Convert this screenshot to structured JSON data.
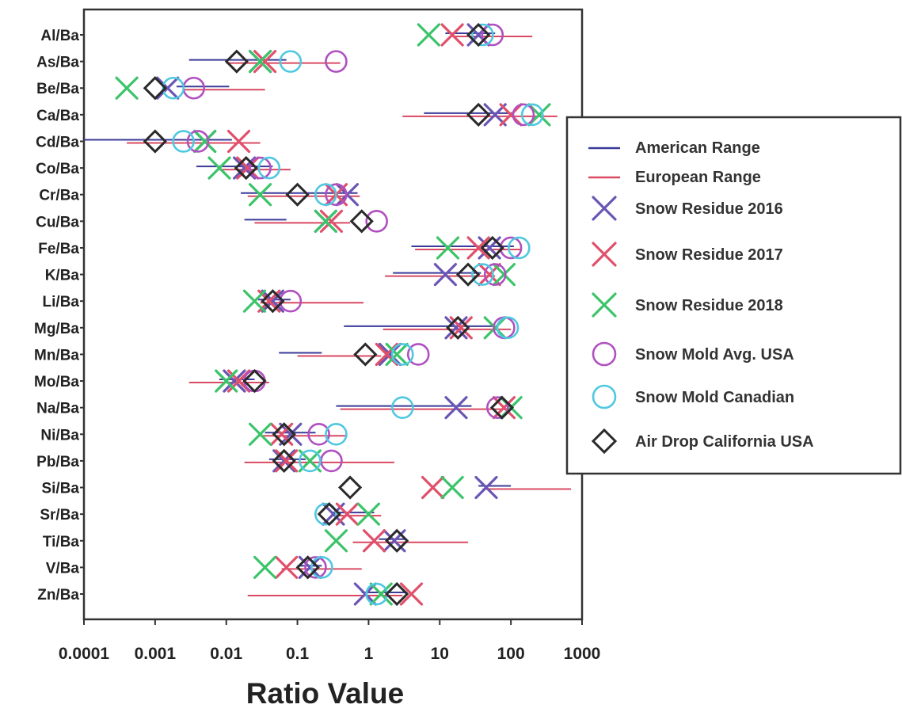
{
  "chart_data": {
    "type": "scatter",
    "xlabel": "Ratio Value",
    "xscale": "log",
    "xlim": [
      0.0001,
      1000
    ],
    "xticks": [
      "0.0001",
      "0.001",
      "0.01",
      "0.1",
      "1",
      "10",
      "100",
      "1000"
    ],
    "categories": [
      "Al/Ba",
      "As/Ba",
      "Be/Ba",
      "Ca/Ba",
      "Cd/Ba",
      "Co/Ba",
      "Cr/Ba",
      "Cu/Ba",
      "Fe/Ba",
      "K/Ba",
      "Li/Ba",
      "Mg/Ba",
      "Mn/Ba",
      "Mo/Ba",
      "Na/Ba",
      "Ni/Ba",
      "Pb/Ba",
      "Si/Ba",
      "Sr/Ba",
      "Ti/Ba",
      "V/Ba",
      "Zn/Ba"
    ],
    "ranges": [
      {
        "name": "American Range",
        "color": "#3b3b9a",
        "values": [
          [
            12,
            60
          ],
          [
            0.003,
            0.07
          ],
          [
            0.002,
            0.011
          ],
          [
            6,
            110
          ],
          [
            0.0001,
            0.012
          ],
          [
            0.0038,
            0.045
          ],
          [
            0.016,
            0.7
          ],
          [
            0.018,
            0.07
          ],
          [
            4,
            110
          ],
          [
            2.2,
            38
          ],
          [
            0.028,
            0.08
          ],
          [
            0.45,
            55
          ],
          [
            0.055,
            0.22
          ],
          [
            0.008,
            0.025
          ],
          [
            0.35,
            28
          ],
          [
            0.035,
            0.18
          ],
          [
            0.04,
            0.13
          ],
          [
            35,
            100
          ],
          [
            0.3,
            1.2
          ],
          [
            1.4,
            3.2
          ],
          [
            0.1,
            0.22
          ],
          [
            0.8,
            3.5
          ]
        ]
      },
      {
        "name": "European Range",
        "color": "#d94a62",
        "values": [
          [
            15,
            200
          ],
          [
            0.01,
            0.4
          ],
          [
            0.0025,
            0.035
          ],
          [
            3,
            450
          ],
          [
            0.0004,
            0.03
          ],
          [
            0.008,
            0.08
          ],
          [
            0.02,
            0.75
          ],
          [
            0.025,
            0.55
          ],
          [
            4.5,
            140
          ],
          [
            1.7,
            60
          ],
          [
            0.03,
            0.85
          ],
          [
            1.6,
            100
          ],
          [
            0.1,
            1.5
          ],
          [
            0.003,
            0.04
          ],
          [
            0.4,
            90
          ],
          [
            0.03,
            0.5
          ],
          [
            0.018,
            2.3
          ],
          [
            40,
            700
          ],
          [
            0.3,
            1.5
          ],
          [
            0.6,
            25
          ],
          [
            0.06,
            0.8
          ],
          [
            0.02,
            3
          ]
        ]
      }
    ],
    "series": [
      {
        "name": "Snow Residue 2016",
        "marker": "x",
        "color": "#6a55b5",
        "values": [
          35,
          0.03,
          0.0015,
          60,
          0.005,
          0.018,
          0.5,
          0.25,
          50,
          12,
          0.045,
          17,
          2,
          0.013,
          17,
          0.08,
          0.065,
          45,
          0.32,
          2.3,
          0.15,
          0.9
        ]
      },
      {
        "name": "Snow Residue 2017",
        "marker": "x",
        "color": "#e0506a",
        "values": [
          15,
          0.035,
          null,
          100,
          0.015,
          0.02,
          0.35,
          0.3,
          35,
          50,
          0.04,
          20,
          1.8,
          0.015,
          80,
          0.06,
          0.07,
          8,
          0.5,
          1.2,
          0.07,
          4
        ]
      },
      {
        "name": "Snow Residue 2018",
        "marker": "x",
        "color": "#3cc46a",
        "values": [
          7,
          0.03,
          0.0004,
          250,
          0.005,
          0.008,
          0.03,
          0.25,
          13,
          80,
          0.025,
          60,
          2.5,
          0.01,
          100,
          0.03,
          0.15,
          15,
          1,
          0.35,
          0.035,
          1.5
        ]
      },
      {
        "name": "Snow Mold Avg. USA",
        "marker": "circle",
        "color": "#b050c0",
        "values": [
          55,
          0.35,
          0.0035,
          150,
          0.004,
          0.03,
          0.35,
          1.3,
          100,
          60,
          0.08,
          80,
          5,
          0.025,
          65,
          0.2,
          0.3,
          null,
          null,
          null,
          0.18,
          null
        ]
      },
      {
        "name": "Snow Mold Canadian",
        "marker": "circle",
        "color": "#4fc8e0",
        "values": [
          40,
          0.08,
          0.0018,
          200,
          0.0025,
          0.04,
          0.25,
          null,
          130,
          40,
          null,
          90,
          3,
          null,
          3,
          0.35,
          0.15,
          null,
          0.25,
          null,
          0.22,
          1.3
        ]
      },
      {
        "name": "Air Drop California USA",
        "marker": "diamond",
        "color": "#2a2a2a",
        "values": [
          35,
          0.014,
          0.001,
          35,
          0.001,
          0.019,
          0.1,
          0.8,
          55,
          25,
          0.045,
          18,
          0.9,
          0.025,
          75,
          0.065,
          0.065,
          0.55,
          0.28,
          2.5,
          0.14,
          2.5
        ]
      }
    ],
    "legend": {
      "position": "right",
      "entries": [
        {
          "label": "American Range",
          "color": "#3b3b9a",
          "marker": "line"
        },
        {
          "label": "European Range",
          "color": "#d94a62",
          "marker": "line"
        },
        {
          "label": "Snow Residue 2016",
          "color": "#6a55b5",
          "marker": "x"
        },
        {
          "label": "Snow Residue 2017",
          "color": "#e0506a",
          "marker": "x"
        },
        {
          "label": "Snow Residue 2018",
          "color": "#3cc46a",
          "marker": "x"
        },
        {
          "label": "Snow Mold Avg. USA",
          "color": "#b050c0",
          "marker": "circle"
        },
        {
          "label": "Snow Mold Canadian",
          "color": "#4fc8e0",
          "marker": "circle"
        },
        {
          "label": "Air Drop California USA",
          "color": "#2a2a2a",
          "marker": "diamond",
          "text_color": "#d94a62"
        }
      ]
    }
  }
}
